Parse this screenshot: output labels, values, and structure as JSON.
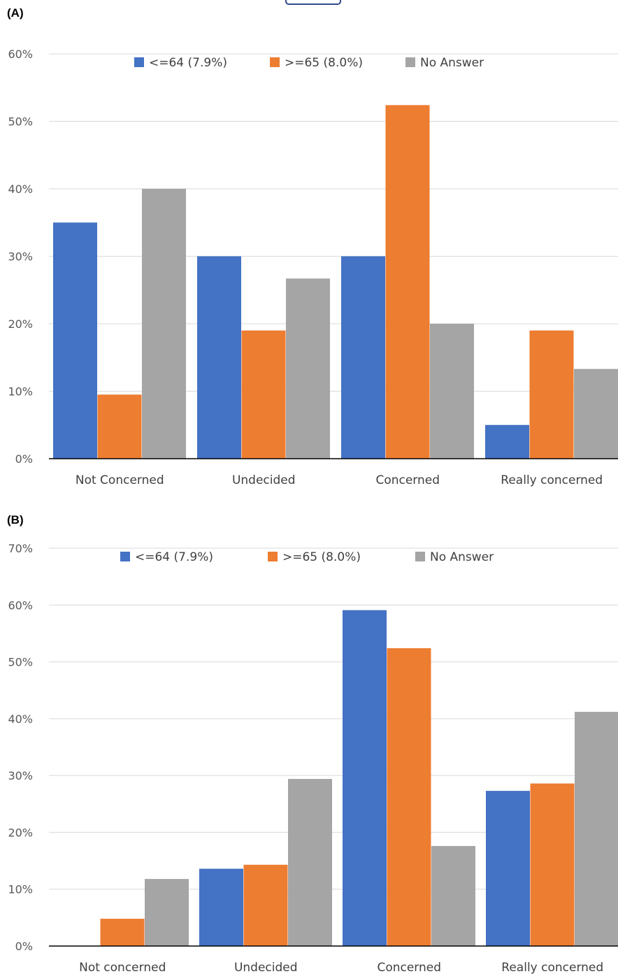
{
  "chart_data": [
    {
      "type": "bar",
      "panel_label": "(A)",
      "categories": [
        "Not Concerned",
        "Undecided",
        "Concerned",
        "Really concerned"
      ],
      "series": [
        {
          "name": "<=64 (7.9%)",
          "color": "#4472c4",
          "values": [
            35,
            30,
            30,
            5
          ]
        },
        {
          "name": ">=65 (8.0%)",
          "color": "#ed7d31",
          "values": [
            9.5,
            19,
            52.4,
            19
          ]
        },
        {
          "name": "No Answer",
          "color": "#a5a5a5",
          "values": [
            40,
            26.7,
            20,
            13.3
          ]
        }
      ],
      "ylim": [
        0,
        60
      ],
      "yticks": [
        0,
        10,
        20,
        30,
        40,
        50,
        60
      ],
      "ytick_suffix": "%",
      "grid": true,
      "legend": "top"
    },
    {
      "type": "bar",
      "panel_label": "(B)",
      "categories": [
        "Not concerned",
        "Undecided",
        "Concerned",
        "Really concerned"
      ],
      "series": [
        {
          "name": "<=64 (7.9%)",
          "color": "#4472c4",
          "values": [
            0,
            13.6,
            59.1,
            27.3
          ]
        },
        {
          "name": ">=65 (8.0%)",
          "color": "#ed7d31",
          "values": [
            4.8,
            14.3,
            52.4,
            28.6
          ]
        },
        {
          "name": "No Answer",
          "color": "#a5a5a5",
          "values": [
            11.8,
            29.4,
            17.6,
            41.2
          ]
        }
      ],
      "ylim": [
        0,
        70
      ],
      "yticks": [
        0,
        10,
        20,
        30,
        40,
        50,
        60,
        70
      ],
      "ytick_suffix": "%",
      "grid": true,
      "legend": "top"
    }
  ]
}
